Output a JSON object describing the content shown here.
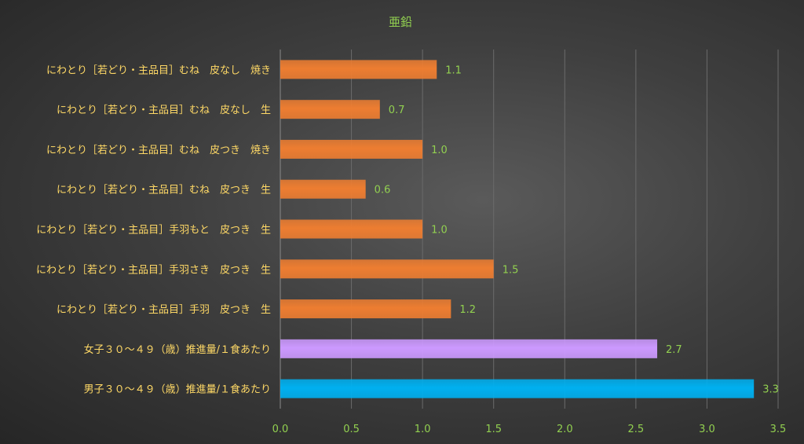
{
  "chart_data": {
    "type": "bar",
    "orientation": "horizontal",
    "title": "亜鉛",
    "categories": [
      "にわとり［若どり・主品目］むね　皮なし　焼き",
      "にわとり［若どり・主品目］むね　皮なし　生",
      "にわとり［若どり・主品目］むね　皮つき　焼き",
      "にわとり［若どり・主品目］むね　皮つき　生",
      "にわとり［若どり・主品目］手羽もと　皮つき　生",
      "にわとり［若どり・主品目］手羽さき　皮つき　生",
      "にわとり［若どり・主品目］手羽　皮つき　生",
      "女子３０～４９（歳）推進量/１食あたり",
      "男子３０～４９（歳）推進量/１食あたり"
    ],
    "values": [
      1.1,
      0.7,
      1.0,
      0.6,
      1.0,
      1.5,
      1.2,
      2.65,
      3.33
    ],
    "value_labels": [
      "1.1",
      "0.7",
      "1.0",
      "0.6",
      "1.0",
      "1.5",
      "1.2",
      "2.7",
      "3.3"
    ],
    "bar_colors": [
      "#ed7d31",
      "#ed7d31",
      "#ed7d31",
      "#ed7d31",
      "#ed7d31",
      "#ed7d31",
      "#ed7d31",
      "#cc99ff",
      "#00b0f0"
    ],
    "xlim": [
      0,
      3.5
    ],
    "x_ticks": [
      "0.0",
      "0.5",
      "1.0",
      "1.5",
      "2.0",
      "2.5",
      "3.0",
      "3.5"
    ],
    "grid": true,
    "legend": "none"
  }
}
